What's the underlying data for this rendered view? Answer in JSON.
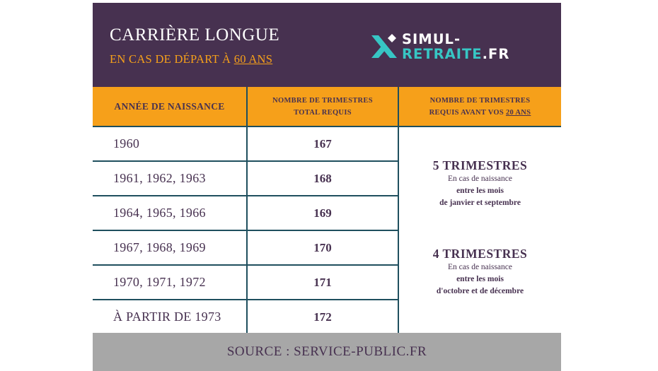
{
  "header": {
    "title": "CARRIÈRE LONGUE",
    "subtitle_prefix": "EN CAS DE DÉPART À ",
    "subtitle_age": "60 ANS",
    "logo_line1": "SIMUL-",
    "logo_line2": "RETRAITE",
    "logo_tld": ".FR",
    "colors": {
      "header_bg": "#473150",
      "accent": "#f6a01a",
      "logo_teal": "#37c6c4"
    }
  },
  "table": {
    "columns": {
      "birth_year": "ANNÉE DE NAISSANCE",
      "total_line1": "NOMBRE DE TRIMESTRES",
      "total_line2": "TOTAL REQUIS",
      "before20_line1": "NOMBRE DE TRIMESTRES",
      "before20_line2_prefix": "REQUIS AVANT VOS ",
      "before20_line2_age": "20 ANS"
    },
    "rows": [
      {
        "years": "1960",
        "total": "167"
      },
      {
        "years": "1961, 1962, 1963",
        "total": "168"
      },
      {
        "years": "1964, 1965, 1966",
        "total": "169"
      },
      {
        "years": "1967, 1968, 1969",
        "total": "170"
      },
      {
        "years": "1970, 1971, 1972",
        "total": "171"
      },
      {
        "years": "À PARTIR DE 1973",
        "total": "172"
      }
    ],
    "before20": [
      {
        "title": "5 TRIMESTRES",
        "line1": "En cas de naissance",
        "line2": "entre les mois",
        "line3": "de janvier et septembre"
      },
      {
        "title": "4 TRIMESTRES",
        "line1": "En cas de naissance",
        "line2": "entre les mois",
        "line3": "d'octobre et de décembre"
      }
    ]
  },
  "footer": {
    "source": "SOURCE : SERVICE-PUBLIC.FR"
  }
}
